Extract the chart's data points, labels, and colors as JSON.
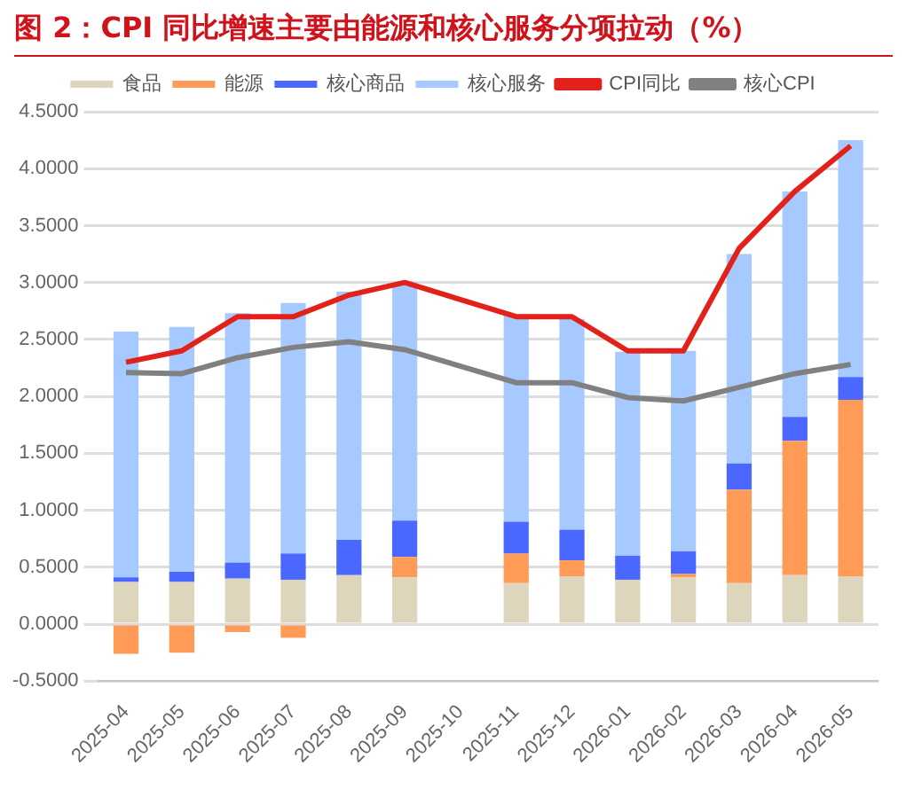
{
  "chart_data": {
    "type": "bar",
    "title": "图 2：CPI 同比增速主要由能源和核心服务分项拉动（%）",
    "stacked": true,
    "categories": [
      "2025-04",
      "2025-05",
      "2025-06",
      "2025-07",
      "2025-08",
      "2025-09",
      "2025-10",
      "2025-11",
      "2025-12",
      "2026-01",
      "2026-02",
      "2026-03",
      "2026-04",
      "2026-05"
    ],
    "series": [
      {
        "name": "食品",
        "color": "#ded5bd",
        "values": [
          0.37,
          0.37,
          0.4,
          0.39,
          0.43,
          0.41,
          null,
          0.36,
          0.42,
          0.39,
          0.41,
          0.36,
          0.43,
          0.42
        ]
      },
      {
        "name": "能源",
        "color": "#ff9b57",
        "values": [
          -0.26,
          -0.25,
          -0.07,
          -0.12,
          0,
          0.18,
          null,
          0.26,
          0.14,
          0,
          0.03,
          0.82,
          1.18,
          1.55
        ]
      },
      {
        "name": "核心商品",
        "color": "#4a67ff",
        "values": [
          0.04,
          0.09,
          0.14,
          0.23,
          0.31,
          0.32,
          null,
          0.28,
          0.27,
          0.21,
          0.2,
          0.23,
          0.21,
          0.2
        ]
      },
      {
        "name": "核心服务",
        "color": "#a6caff",
        "values": [
          2.16,
          2.15,
          2.19,
          2.2,
          2.18,
          2.09,
          null,
          1.82,
          1.85,
          1.79,
          1.76,
          1.84,
          1.98,
          2.08
        ]
      },
      {
        "name": "CPI同比",
        "type": "line",
        "color": "#e3211b",
        "values": [
          2.3,
          2.4,
          2.7,
          2.7,
          2.89,
          3.0,
          null,
          2.7,
          2.7,
          2.4,
          2.4,
          3.3,
          3.8,
          4.2
        ]
      },
      {
        "name": "核心CPI",
        "type": "line",
        "color": "#808080",
        "values": [
          2.21,
          2.2,
          2.34,
          2.43,
          2.48,
          2.41,
          null,
          2.12,
          2.12,
          1.99,
          1.96,
          2.08,
          2.2,
          2.28
        ]
      }
    ],
    "ylim": [
      -0.5,
      4.5
    ],
    "yticks": [
      {
        "value": -0.5,
        "label": "-0.5000"
      },
      {
        "value": 0,
        "label": "0.0000"
      },
      {
        "value": 0.5,
        "label": "0.5000"
      },
      {
        "value": 1,
        "label": "1.0000"
      },
      {
        "value": 1.5,
        "label": "1.5000"
      },
      {
        "value": 2,
        "label": "2.0000"
      },
      {
        "value": 2.5,
        "label": "2.5000"
      },
      {
        "value": 3,
        "label": "3.0000"
      },
      {
        "value": 3.5,
        "label": "3.5000"
      },
      {
        "value": 4,
        "label": "4.0000"
      },
      {
        "value": 4.5,
        "label": "4.5000"
      }
    ],
    "grid": "y",
    "legend": "top",
    "marker": "none"
  }
}
